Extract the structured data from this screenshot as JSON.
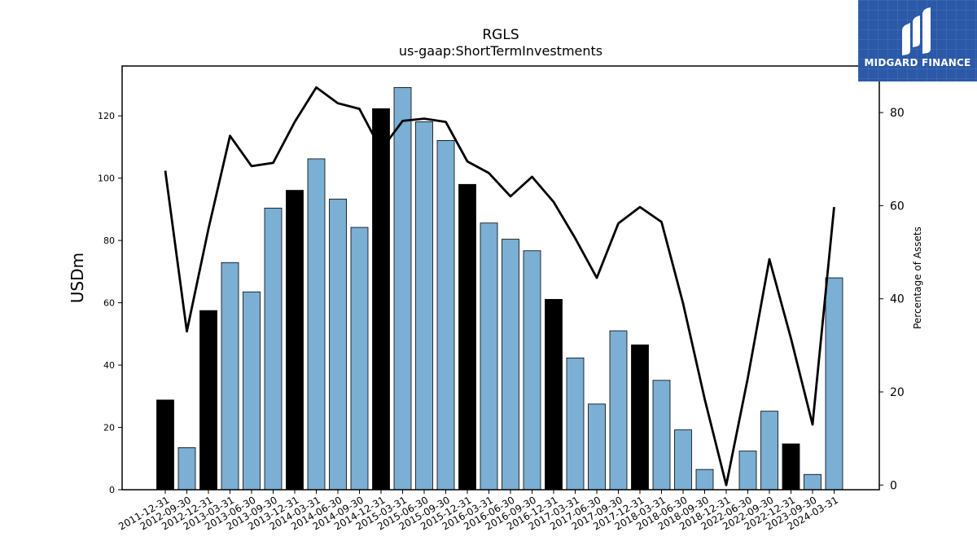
{
  "brand": {
    "name": "MIDGARD FINANCE",
    "color": "#2b59a8"
  },
  "chart_data": {
    "type": "bar",
    "title": "RGLS",
    "subtitle": "us-gaap:ShortTermInvestments",
    "ylabel": "USDm",
    "y2label": "Percentage of Assets",
    "ylim": [
      0,
      136
    ],
    "y2lim": [
      -1,
      90
    ],
    "yticks": [
      0,
      20,
      40,
      60,
      80,
      100,
      120
    ],
    "y2ticks": [
      0,
      20,
      40,
      60,
      80
    ],
    "colors": {
      "annual": "#000000",
      "quarterly": "#7bafd4",
      "line": "#000000"
    },
    "categories": [
      "2011-12-31",
      "2012-09-30",
      "2012-12-31",
      "2013-03-31",
      "2013-06-30",
      "2013-09-30",
      "2013-12-31",
      "2014-03-31",
      "2014-06-30",
      "2014-09-30",
      "2014-12-31",
      "2015-03-31",
      "2015-06-30",
      "2015-09-30",
      "2015-12-31",
      "2016-03-31",
      "2016-06-30",
      "2016-09-30",
      "2016-12-31",
      "2017-03-31",
      "2017-06-30",
      "2017-09-30",
      "2017-12-31",
      "2018-03-31",
      "2018-06-30",
      "2018-09-30",
      "2018-12-31",
      "2022-06-30",
      "2022-09-30",
      "2022-12-31",
      "2023-09-30",
      "2024-03-31"
    ],
    "series": [
      {
        "kind": "bar",
        "values": [
          28.8,
          13.5,
          57.5,
          72.9,
          63.5,
          90.4,
          96.1,
          106.2,
          93.3,
          84.2,
          122.3,
          129.1,
          118.1,
          112.1,
          98.0,
          85.6,
          80.4,
          76.7,
          61.1,
          42.3,
          27.5,
          51.0,
          46.5,
          35.1,
          19.2,
          6.5,
          0,
          12.4,
          25.2,
          14.7,
          4.9,
          68.0
        ],
        "annual": [
          true,
          false,
          true,
          false,
          false,
          false,
          true,
          false,
          false,
          false,
          true,
          false,
          false,
          false,
          true,
          false,
          false,
          false,
          true,
          false,
          false,
          false,
          true,
          false,
          false,
          false,
          true,
          false,
          false,
          true,
          false,
          false
        ]
      },
      {
        "kind": "line",
        "axis": "right",
        "values": [
          67.5,
          33.0,
          55.0,
          75.0,
          68.5,
          69.2,
          78.0,
          85.4,
          82.0,
          80.8,
          72.0,
          78.2,
          78.7,
          78.0,
          69.5,
          67.0,
          62.0,
          66.2,
          60.8,
          53.0,
          44.5,
          56.2,
          59.7,
          56.5,
          39.0,
          18.5,
          0,
          23.0,
          48.5,
          31.5,
          13.0,
          59.7
        ]
      }
    ]
  }
}
